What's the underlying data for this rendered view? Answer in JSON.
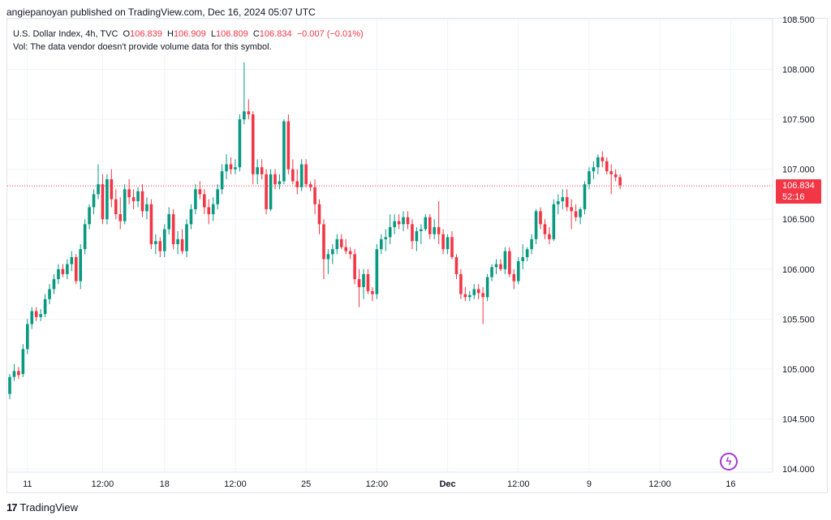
{
  "credit": "angiepanoyan published on TradingView.com, Dec 16, 2024 05:07 UTC",
  "legend": {
    "symbol": "U.S. Dollar Index, 4h, TVC",
    "o_label": "O",
    "o_val": "106.839",
    "h_label": "H",
    "h_val": "106.909",
    "l_label": "L",
    "l_val": "106.809",
    "c_label": "C",
    "c_val": "106.834",
    "change": "−0.007 (−0.01%)",
    "vol": "Vol: The data vendor doesn't provide volume data for this symbol."
  },
  "price_tag": {
    "price": "106.834",
    "countdown": "52:16"
  },
  "brand": {
    "logo": "17",
    "name": "TradingView"
  },
  "colors": {
    "up": "#089981",
    "down": "#f23645",
    "grid": "#f0f3fa",
    "axis_text": "#131722",
    "last_line": "#f23645"
  },
  "chart_data": {
    "type": "candlestick",
    "title": "U.S. Dollar Index, 4h, TVC",
    "ylim": [
      104.0,
      108.5
    ],
    "y_ticks": [
      "104.000",
      "104.500",
      "105.000",
      "105.500",
      "106.000",
      "106.500",
      "107.000",
      "107.500",
      "108.000",
      "108.500"
    ],
    "x_ticks": [
      {
        "label": "11",
        "index": 4
      },
      {
        "label": "12:00",
        "index": 21
      },
      {
        "label": "18",
        "index": 35
      },
      {
        "label": "12:00",
        "index": 51
      },
      {
        "label": "25",
        "index": 67
      },
      {
        "label": "12:00",
        "index": 83
      },
      {
        "label": "Dec",
        "index": 99
      },
      {
        "label": "12:00",
        "index": 115
      },
      {
        "label": "9",
        "index": 131
      },
      {
        "label": "12:00",
        "index": 147
      },
      {
        "label": "16",
        "index": 163
      }
    ],
    "last_price": 106.834,
    "candles": [
      [
        104.75,
        104.95,
        104.7,
        104.92
      ],
      [
        104.92,
        105.05,
        104.88,
        104.98
      ],
      [
        104.98,
        105.02,
        104.9,
        104.94
      ],
      [
        104.95,
        105.25,
        104.92,
        105.2
      ],
      [
        105.2,
        105.5,
        105.15,
        105.45
      ],
      [
        105.45,
        105.62,
        105.4,
        105.58
      ],
      [
        105.58,
        105.62,
        105.48,
        105.52
      ],
      [
        105.52,
        105.6,
        105.48,
        105.55
      ],
      [
        105.55,
        105.75,
        105.52,
        105.7
      ],
      [
        105.7,
        105.85,
        105.65,
        105.8
      ],
      [
        105.8,
        105.95,
        105.75,
        105.9
      ],
      [
        105.9,
        106.05,
        105.85,
        106.0
      ],
      [
        106.0,
        106.05,
        105.92,
        105.95
      ],
      [
        105.95,
        106.1,
        105.9,
        106.05
      ],
      [
        106.05,
        106.18,
        105.98,
        106.12
      ],
      [
        106.12,
        106.15,
        105.85,
        105.88
      ],
      [
        105.88,
        106.25,
        105.8,
        106.2
      ],
      [
        106.2,
        106.5,
        106.15,
        106.45
      ],
      [
        106.45,
        106.65,
        106.4,
        106.62
      ],
      [
        106.62,
        106.8,
        106.55,
        106.75
      ],
      [
        106.75,
        107.05,
        106.7,
        106.85
      ],
      [
        106.85,
        106.95,
        106.45,
        106.5
      ],
      [
        106.5,
        106.95,
        106.45,
        106.9
      ],
      [
        106.9,
        107.0,
        106.62,
        106.7
      ],
      [
        106.7,
        106.8,
        106.5,
        106.55
      ],
      [
        106.55,
        106.72,
        106.4,
        106.48
      ],
      [
        106.48,
        106.85,
        106.45,
        106.8
      ],
      [
        106.8,
        106.9,
        106.65,
        106.72
      ],
      [
        106.72,
        106.8,
        106.6,
        106.68
      ],
      [
        106.68,
        106.82,
        106.62,
        106.78
      ],
      [
        106.78,
        106.85,
        106.52,
        106.58
      ],
      [
        106.58,
        106.72,
        106.5,
        106.65
      ],
      [
        106.65,
        106.7,
        106.2,
        106.25
      ],
      [
        106.25,
        106.35,
        106.15,
        106.28
      ],
      [
        106.28,
        106.32,
        106.12,
        106.18
      ],
      [
        106.18,
        106.45,
        106.12,
        106.4
      ],
      [
        106.4,
        106.62,
        106.35,
        106.55
      ],
      [
        106.55,
        106.6,
        106.2,
        106.25
      ],
      [
        106.25,
        106.38,
        106.15,
        106.3
      ],
      [
        106.3,
        106.4,
        106.15,
        106.18
      ],
      [
        106.18,
        106.5,
        106.12,
        106.45
      ],
      [
        106.45,
        106.65,
        106.4,
        106.6
      ],
      [
        106.6,
        106.85,
        106.55,
        106.8
      ],
      [
        106.8,
        106.88,
        106.7,
        106.75
      ],
      [
        106.75,
        106.8,
        106.55,
        106.62
      ],
      [
        106.62,
        106.7,
        106.45,
        106.55
      ],
      [
        106.55,
        106.72,
        106.48,
        106.65
      ],
      [
        106.65,
        106.85,
        106.6,
        106.8
      ],
      [
        106.8,
        107.05,
        106.75,
        106.98
      ],
      [
        106.98,
        107.15,
        106.9,
        107.05
      ],
      [
        107.05,
        107.12,
        106.95,
        107.0
      ],
      [
        107.0,
        107.1,
        106.95,
        107.02
      ],
      [
        107.02,
        107.55,
        106.98,
        107.5
      ],
      [
        107.5,
        108.07,
        107.45,
        107.58
      ],
      [
        107.58,
        107.7,
        107.5,
        107.55
      ],
      [
        107.55,
        107.58,
        106.85,
        106.95
      ],
      [
        106.95,
        107.1,
        106.85,
        107.02
      ],
      [
        107.02,
        107.1,
        106.9,
        106.95
      ],
      [
        106.95,
        107.0,
        106.55,
        106.6
      ],
      [
        106.6,
        107.0,
        106.58,
        106.95
      ],
      [
        106.95,
        107.0,
        106.8,
        106.85
      ],
      [
        106.85,
        106.95,
        106.8,
        106.88
      ],
      [
        106.88,
        107.5,
        106.85,
        107.48
      ],
      [
        107.48,
        107.55,
        106.95,
        107.0
      ],
      [
        107.0,
        107.1,
        106.85,
        106.88
      ],
      [
        106.88,
        107.0,
        106.75,
        106.82
      ],
      [
        106.82,
        107.1,
        106.78,
        107.05
      ],
      [
        107.05,
        107.1,
        106.82,
        106.85
      ],
      [
        106.85,
        106.88,
        106.78,
        106.82
      ],
      [
        106.82,
        106.9,
        106.55,
        106.65
      ],
      [
        106.65,
        106.7,
        106.35,
        106.45
      ],
      [
        106.45,
        106.5,
        105.9,
        106.1
      ],
      [
        106.1,
        106.2,
        105.95,
        106.15
      ],
      [
        106.15,
        106.25,
        106.05,
        106.2
      ],
      [
        106.2,
        106.35,
        106.15,
        106.3
      ],
      [
        106.3,
        106.35,
        106.2,
        106.22
      ],
      [
        106.22,
        106.3,
        106.15,
        106.18
      ],
      [
        106.18,
        106.22,
        106.1,
        106.15
      ],
      [
        106.15,
        106.2,
        105.85,
        105.9
      ],
      [
        105.9,
        106.0,
        105.62,
        105.82
      ],
      [
        105.82,
        106.0,
        105.7,
        105.95
      ],
      [
        105.95,
        106.0,
        105.75,
        105.78
      ],
      [
        105.78,
        105.82,
        105.68,
        105.75
      ],
      [
        105.75,
        106.25,
        105.7,
        106.2
      ],
      [
        106.2,
        106.35,
        106.15,
        106.3
      ],
      [
        106.3,
        106.4,
        106.18,
        106.32
      ],
      [
        106.32,
        106.55,
        106.25,
        106.42
      ],
      [
        106.42,
        106.55,
        106.35,
        106.48
      ],
      [
        106.48,
        106.55,
        106.4,
        106.45
      ],
      [
        106.45,
        106.58,
        106.38,
        106.52
      ],
      [
        106.52,
        106.58,
        106.4,
        106.45
      ],
      [
        106.45,
        106.5,
        106.2,
        106.28
      ],
      [
        106.28,
        106.42,
        106.18,
        106.38
      ],
      [
        106.38,
        106.45,
        106.25,
        106.4
      ],
      [
        106.4,
        106.55,
        106.38,
        106.52
      ],
      [
        106.52,
        106.55,
        106.3,
        106.35
      ],
      [
        106.35,
        106.5,
        106.3,
        106.42
      ],
      [
        106.42,
        106.68,
        106.25,
        106.35
      ],
      [
        106.35,
        106.4,
        106.15,
        106.2
      ],
      [
        106.2,
        106.35,
        106.15,
        106.32
      ],
      [
        106.32,
        106.38,
        106.1,
        106.12
      ],
      [
        106.12,
        106.15,
        105.9,
        105.95
      ],
      [
        105.95,
        106.0,
        105.7,
        105.75
      ],
      [
        105.75,
        105.82,
        105.68,
        105.72
      ],
      [
        105.72,
        105.78,
        105.68,
        105.74
      ],
      [
        105.74,
        105.85,
        105.7,
        105.8
      ],
      [
        105.8,
        105.85,
        105.7,
        105.76
      ],
      [
        105.76,
        105.82,
        105.45,
        105.72
      ],
      [
        105.72,
        105.95,
        105.68,
        105.92
      ],
      [
        105.92,
        106.05,
        105.88,
        106.02
      ],
      [
        106.02,
        106.1,
        105.95,
        106.05
      ],
      [
        106.05,
        106.1,
        105.98,
        106.0
      ],
      [
        106.0,
        106.22,
        105.95,
        106.18
      ],
      [
        106.18,
        106.22,
        105.92,
        105.95
      ],
      [
        105.95,
        106.0,
        105.8,
        105.88
      ],
      [
        105.88,
        106.12,
        105.85,
        106.08
      ],
      [
        106.08,
        106.25,
        106.0,
        106.12
      ],
      [
        106.12,
        106.22,
        106.08,
        106.2
      ],
      [
        106.2,
        106.35,
        106.15,
        106.3
      ],
      [
        106.3,
        106.6,
        106.25,
        106.58
      ],
      [
        106.58,
        106.62,
        106.4,
        106.45
      ],
      [
        106.45,
        106.5,
        106.3,
        106.35
      ],
      [
        106.35,
        106.42,
        106.25,
        106.3
      ],
      [
        106.3,
        106.7,
        106.28,
        106.65
      ],
      [
        106.65,
        106.75,
        106.55,
        106.68
      ],
      [
        106.68,
        106.8,
        106.6,
        106.72
      ],
      [
        106.72,
        106.8,
        106.58,
        106.62
      ],
      [
        106.62,
        106.7,
        106.4,
        106.58
      ],
      [
        106.58,
        106.65,
        106.48,
        106.52
      ],
      [
        106.52,
        106.62,
        106.45,
        106.6
      ],
      [
        106.6,
        106.88,
        106.55,
        106.85
      ],
      [
        106.85,
        107.02,
        106.8,
        106.98
      ],
      [
        106.98,
        107.08,
        106.9,
        107.02
      ],
      [
        107.02,
        107.15,
        106.95,
        107.12
      ],
      [
        107.12,
        107.18,
        107.02,
        107.08
      ],
      [
        107.08,
        107.12,
        106.95,
        106.98
      ],
      [
        106.98,
        107.05,
        106.75,
        106.95
      ],
      [
        106.95,
        107.0,
        106.88,
        106.92
      ],
      [
        106.92,
        106.95,
        106.8,
        106.84
      ]
    ]
  }
}
